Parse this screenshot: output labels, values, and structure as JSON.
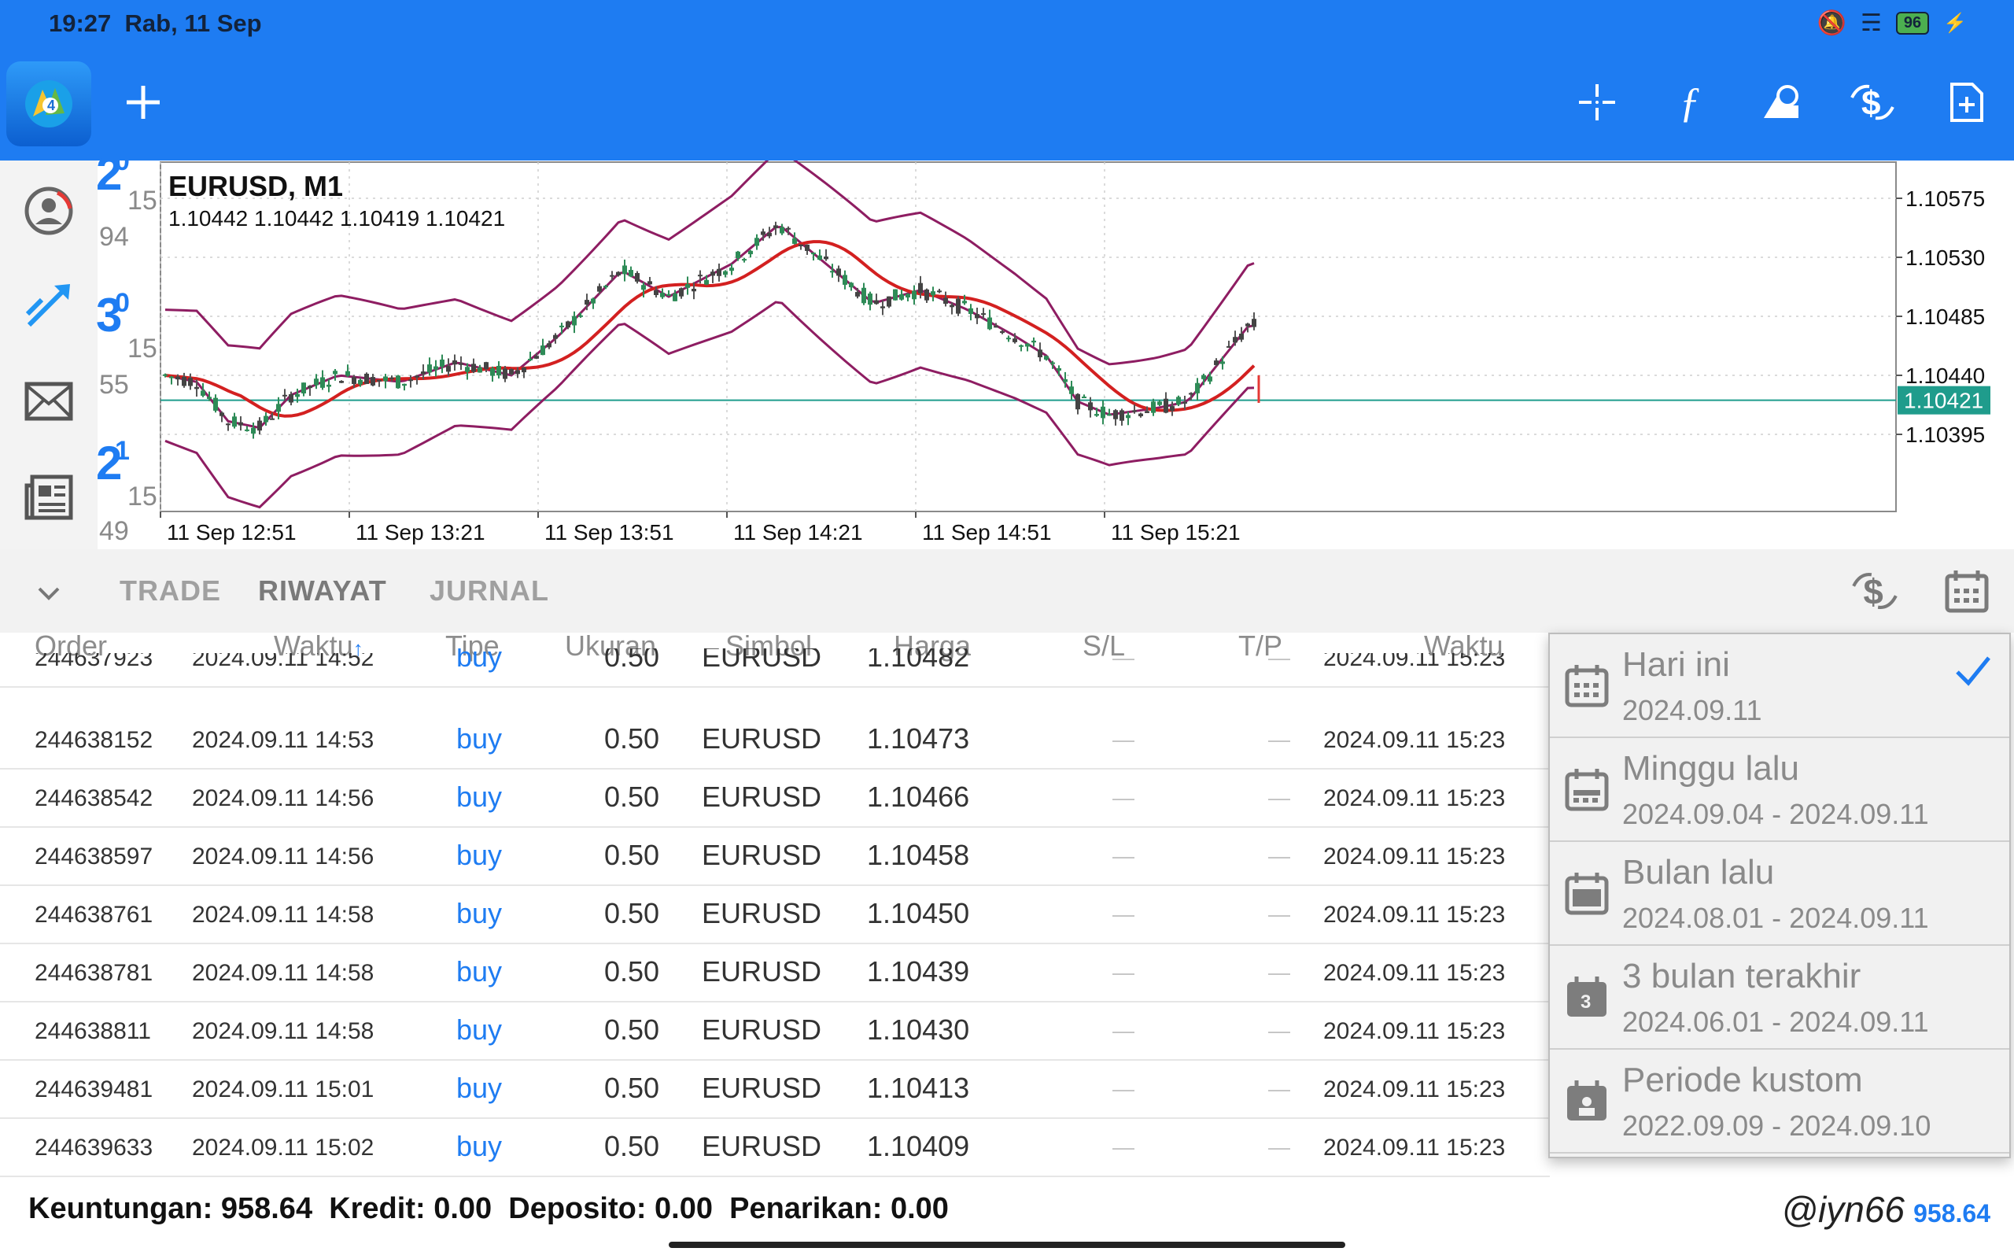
{
  "status": {
    "time": "19:27",
    "date": "Rab, 11 Sep",
    "battery": "96"
  },
  "toolbar": {
    "add_icon": "plus-icon",
    "icons": [
      "crosshair-icon",
      "indicator-f-icon",
      "objects-icon",
      "trade-dollar-icon",
      "new-order-icon"
    ]
  },
  "chart": {
    "symbol": "EURUSD, M1",
    "ohlc": "1.10442 1.10442 1.10419 1.10421",
    "current_price": "1.10421",
    "price_labels": [
      "1.10575",
      "1.10530",
      "1.10485",
      "1.10440",
      "1.10395"
    ],
    "time_labels": [
      "11 Sep 12:51",
      "11 Sep 13:21",
      "11 Sep 13:51",
      "11 Sep 14:21",
      "11 Sep 14:51",
      "11 Sep 15:21"
    ],
    "ghost": [
      "2",
      "0",
      "15",
      "94",
      "3",
      "0",
      "15",
      "55",
      "2",
      "1",
      "15",
      "49"
    ]
  },
  "tabs": {
    "trade": "TRADE",
    "history": "RIWAYAT",
    "journal": "JURNAL"
  },
  "table": {
    "headers": [
      "Order",
      "Waktu",
      "Tipe",
      "Ukuran",
      "Simbol",
      "Harga",
      "S/L",
      "T/P",
      "Waktu"
    ],
    "rows": [
      {
        "order": "244637923",
        "time": "2024.09.11 14:52",
        "type": "buy",
        "size": "0.50",
        "symbol": "EURUSD",
        "price": "1.10482",
        "sl": "—",
        "tp": "—",
        "close_time": "2024.09.11 15:23"
      },
      {
        "order": "244638152",
        "time": "2024.09.11 14:53",
        "type": "buy",
        "size": "0.50",
        "symbol": "EURUSD",
        "price": "1.10473",
        "sl": "—",
        "tp": "—",
        "close_time": "2024.09.11 15:23"
      },
      {
        "order": "244638542",
        "time": "2024.09.11 14:56",
        "type": "buy",
        "size": "0.50",
        "symbol": "EURUSD",
        "price": "1.10466",
        "sl": "—",
        "tp": "—",
        "close_time": "2024.09.11 15:23"
      },
      {
        "order": "244638597",
        "time": "2024.09.11 14:56",
        "type": "buy",
        "size": "0.50",
        "symbol": "EURUSD",
        "price": "1.10458",
        "sl": "—",
        "tp": "—",
        "close_time": "2024.09.11 15:23"
      },
      {
        "order": "244638761",
        "time": "2024.09.11 14:58",
        "type": "buy",
        "size": "0.50",
        "symbol": "EURUSD",
        "price": "1.10450",
        "sl": "—",
        "tp": "—",
        "close_time": "2024.09.11 15:23"
      },
      {
        "order": "244638781",
        "time": "2024.09.11 14:58",
        "type": "buy",
        "size": "0.50",
        "symbol": "EURUSD",
        "price": "1.10439",
        "sl": "—",
        "tp": "—",
        "close_time": "2024.09.11 15:23"
      },
      {
        "order": "244638811",
        "time": "2024.09.11 14:58",
        "type": "buy",
        "size": "0.50",
        "symbol": "EURUSD",
        "price": "1.10430",
        "sl": "—",
        "tp": "—",
        "close_time": "2024.09.11 15:23"
      },
      {
        "order": "244639481",
        "time": "2024.09.11 15:01",
        "type": "buy",
        "size": "0.50",
        "symbol": "EURUSD",
        "price": "1.10413",
        "sl": "—",
        "tp": "—",
        "close_time": "2024.09.11 15:23"
      },
      {
        "order": "244639633",
        "time": "2024.09.11 15:02",
        "type": "buy",
        "size": "0.50",
        "symbol": "EURUSD",
        "price": "1.10409",
        "sl": "—",
        "tp": "—",
        "close_time": "2024.09.11 15:23"
      }
    ]
  },
  "footer": {
    "summary": "Keuntungan: 958.64  Kredit: 0.00  Deposito: 0.00  Penarikan: 0.00",
    "total": "958.64",
    "watermark": "@iyn66"
  },
  "period_menu": {
    "items": [
      {
        "title": "Hari ini",
        "range": "2024.09.11",
        "selected": true,
        "icon": "calendar-day-icon"
      },
      {
        "title": "Minggu lalu",
        "range": "2024.09.04 - 2024.09.11",
        "selected": false,
        "icon": "calendar-week-icon"
      },
      {
        "title": "Bulan lalu",
        "range": "2024.08.01 - 2024.09.11",
        "selected": false,
        "icon": "calendar-month-icon"
      },
      {
        "title": "3 bulan terakhir",
        "range": "2024.06.01 - 2024.09.11",
        "selected": false,
        "icon": "calendar-3-icon"
      },
      {
        "title": "Periode kustom",
        "range": "2022.09.09 - 2024.09.10",
        "selected": false,
        "icon": "calendar-custom-icon"
      }
    ],
    "icon_3": "3"
  }
}
